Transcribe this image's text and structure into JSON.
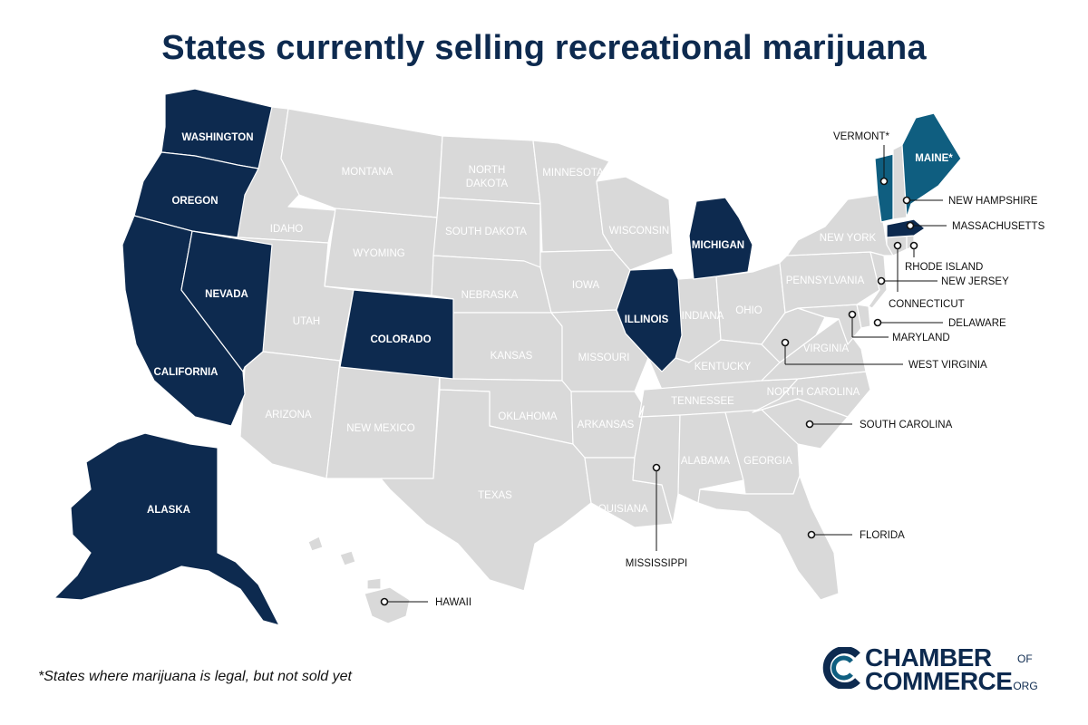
{
  "title": "States currently selling recreational marijuana",
  "footnote": "*States where marijuana is legal, but not sold yet",
  "colors": {
    "selling": "#0d2a4f",
    "legal_not_sold": "#0f5e80",
    "other": "#d9d9d9",
    "border": "#ffffff"
  },
  "logo": {
    "line1": "CHAMBER",
    "of": "OF",
    "line2": "COMMERCE",
    "suffix": ".ORG",
    "icon": "chamber-c-logo-icon"
  },
  "states": {
    "washington": "WASHINGTON",
    "oregon": "OREGON",
    "california": "CALIFORNIA",
    "nevada": "NEVADA",
    "idaho": "IDAHO",
    "montana": "MONTANA",
    "wyoming": "WYOMING",
    "utah": "UTAH",
    "arizona": "ARIZONA",
    "colorado": "COLORADO",
    "new_mexico": "NEW MEXICO",
    "north_dakota_1": "NORTH",
    "north_dakota_2": "DAKOTA",
    "south_dakota": "SOUTH DAKOTA",
    "nebraska": "NEBRASKA",
    "kansas": "KANSAS",
    "oklahoma": "OKLAHOMA",
    "texas": "TEXAS",
    "minnesota": "MINNESOTA",
    "iowa": "IOWA",
    "missouri": "MISSOURI",
    "arkansas": "ARKANSAS",
    "louisiana": "LOUISIANA",
    "wisconsin": "WISCONSIN",
    "illinois": "ILLINOIS",
    "michigan": "MICHIGAN",
    "indiana": "INDIANA",
    "ohio": "OHIO",
    "kentucky": "KENTUCKY",
    "tennessee": "TENNESSEE",
    "alabama": "ALABAMA",
    "georgia": "GEORGIA",
    "north_carolina": "NORTH CAROLINA",
    "virginia": "VIRGINIA",
    "pennsylvania": "PENNSYLVANIA",
    "new_york": "NEW YORK",
    "maine": "MAINE*",
    "alaska": "ALASKA",
    "vermont": "VERMONT*",
    "new_hampshire": "NEW HAMPSHIRE",
    "massachusetts": "MASSACHUSETTS",
    "rhode_island": "RHODE ISLAND",
    "new_jersey": "NEW JERSEY",
    "connecticut": "CONNECTICUT",
    "delaware": "DELAWARE",
    "maryland": "MARYLAND",
    "west_virginia": "WEST VIRGINIA",
    "south_carolina": "SOUTH CAROLINA",
    "florida": "FLORIDA",
    "mississippi": "MISSISSIPPI",
    "hawaii": "HAWAII"
  }
}
